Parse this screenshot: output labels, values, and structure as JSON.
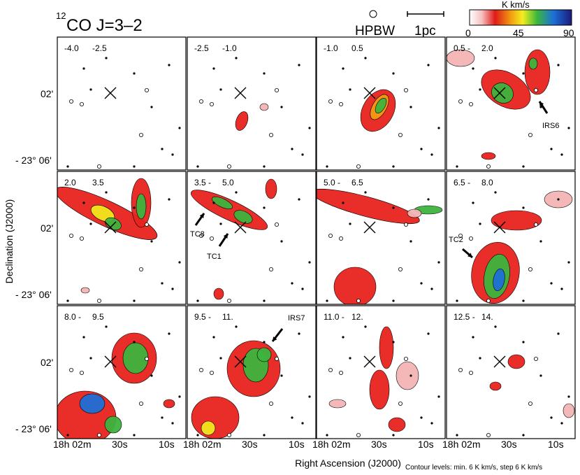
{
  "chart_data": {
    "type": "heatmap",
    "title_iso": "12",
    "title_main": "CO J=3–2",
    "colorbar": {
      "unit": "K km/s",
      "ticks": [
        "0",
        "45",
        "90"
      ],
      "range": [
        0,
        90
      ]
    },
    "beam_label": "HPBW",
    "scalebar_label": "1pc",
    "xlabel": "Right Ascension (J2000)",
    "ylabel": "Declination (J2000)",
    "yticks": [
      "02'",
      "- 23° 06'"
    ],
    "xticks": [
      "18h 02m",
      "30s",
      "10s"
    ],
    "footnote": "Contour levels: min. 6 K km/s,  step  6 K km/s",
    "panels": [
      {
        "range": [
          "-4.0",
          "-2.5"
        ]
      },
      {
        "range": [
          "-2.5",
          "-1.0"
        ]
      },
      {
        "range": [
          "-1.0",
          "0.5"
        ]
      },
      {
        "range": [
          "0.5 -",
          "2.0"
        ]
      },
      {
        "range": [
          "2.0",
          "3.5"
        ]
      },
      {
        "range": [
          "3.5 -",
          "5.0"
        ]
      },
      {
        "range": [
          "5.0 -",
          "6.5"
        ]
      },
      {
        "range": [
          "6.5 -",
          "8.0"
        ]
      },
      {
        "range": [
          "8.0 -",
          "9.5"
        ]
      },
      {
        "range": [
          "9.5 -",
          "11."
        ]
      },
      {
        "range": [
          "11.0 -",
          "12."
        ]
      },
      {
        "range": [
          "12.5 -",
          "14."
        ]
      }
    ],
    "labels": {
      "irs6": "IRS6",
      "tc8": "TC8",
      "tc1": "TC1",
      "tc2": "TC2",
      "irs7": "IRS7"
    }
  }
}
